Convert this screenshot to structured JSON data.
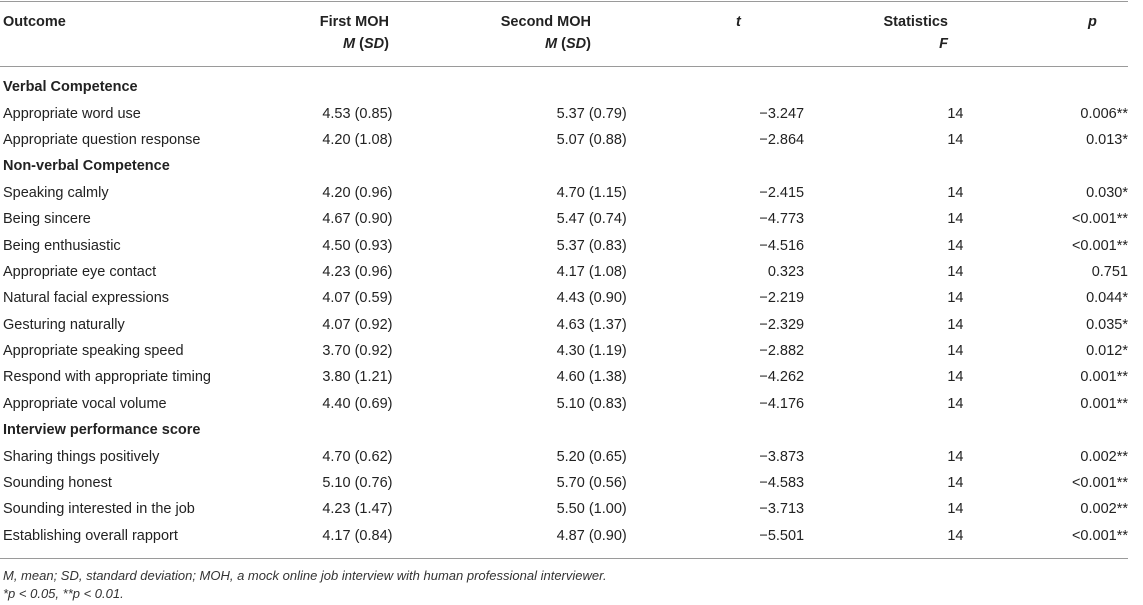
{
  "headers": {
    "outcome": "Outcome",
    "first_moh": "First MOH",
    "first_moh_sub_m": "M",
    "first_moh_sub_sd": "SD",
    "second_moh": "Second MOH",
    "second_moh_sub_m": "M",
    "second_moh_sub_sd": "SD",
    "t": "t",
    "statistics": "Statistics",
    "statistics_sub": "F",
    "p": "p"
  },
  "rows": [
    {
      "type": "section",
      "label": "Verbal Competence"
    },
    {
      "type": "data",
      "label": "Appropriate word use",
      "first": "4.53 (0.85)",
      "second": "5.37 (0.79)",
      "t": "−3.247",
      "f": "14",
      "p": "0.006**"
    },
    {
      "type": "data",
      "label": "Appropriate question response",
      "first": "4.20 (1.08)",
      "second": "5.07 (0.88)",
      "t": "−2.864",
      "f": "14",
      "p": "0.013*"
    },
    {
      "type": "section",
      "label": "Non-verbal Competence"
    },
    {
      "type": "data",
      "label": "Speaking calmly",
      "first": "4.20 (0.96)",
      "second": "4.70 (1.15)",
      "t": "−2.415",
      "f": "14",
      "p": "0.030*"
    },
    {
      "type": "data",
      "label": "Being sincere",
      "first": "4.67 (0.90)",
      "second": "5.47 (0.74)",
      "t": "−4.773",
      "f": "14",
      "p": "<0.001**"
    },
    {
      "type": "data",
      "label": "Being enthusiastic",
      "first": "4.50 (0.93)",
      "second": "5.37 (0.83)",
      "t": "−4.516",
      "f": "14",
      "p": "<0.001**"
    },
    {
      "type": "data",
      "label": "Appropriate eye contact",
      "first": "4.23 (0.96)",
      "second": "4.17 (1.08)",
      "t": "0.323",
      "f": "14",
      "p": "0.751"
    },
    {
      "type": "data",
      "label": "Natural facial expressions",
      "first": "4.07 (0.59)",
      "second": "4.43 (0.90)",
      "t": "−2.219",
      "f": "14",
      "p": "0.044*"
    },
    {
      "type": "data",
      "label": "Gesturing naturally",
      "first": "4.07 (0.92)",
      "second": "4.63 (1.37)",
      "t": "−2.329",
      "f": "14",
      "p": "0.035*"
    },
    {
      "type": "data",
      "label": "Appropriate speaking speed",
      "first": "3.70 (0.92)",
      "second": "4.30 (1.19)",
      "t": "−2.882",
      "f": "14",
      "p": "0.012*"
    },
    {
      "type": "data",
      "label": "Respond with appropriate timing",
      "first": "3.80 (1.21)",
      "second": "4.60 (1.38)",
      "t": "−4.262",
      "f": "14",
      "p": "0.001**"
    },
    {
      "type": "data",
      "label": "Appropriate vocal volume",
      "first": "4.40 (0.69)",
      "second": "5.10 (0.83)",
      "t": "−4.176",
      "f": "14",
      "p": "0.001**"
    },
    {
      "type": "section",
      "label": "Interview performance score"
    },
    {
      "type": "data",
      "label": "Sharing things positively",
      "first": "4.70 (0.62)",
      "second": "5.20 (0.65)",
      "t": "−3.873",
      "f": "14",
      "p": "0.002**"
    },
    {
      "type": "data",
      "label": "Sounding honest",
      "first": "5.10 (0.76)",
      "second": "5.70 (0.56)",
      "t": "−4.583",
      "f": "14",
      "p": "<0.001**"
    },
    {
      "type": "data",
      "label": "Sounding interested in the job",
      "first": "4.23 (1.47)",
      "second": "5.50 (1.00)",
      "t": "−3.713",
      "f": "14",
      "p": "0.002**"
    },
    {
      "type": "data",
      "label": "Establishing overall rapport",
      "first": "4.17 (0.84)",
      "second": "4.87 (0.90)",
      "t": "−5.501",
      "f": "14",
      "p": "<0.001**"
    }
  ],
  "footnotes": {
    "abbreviations": "M, mean; SD, standard deviation; MOH, a mock online job interview with human professional interviewer.",
    "significance": "*p < 0.05, **p < 0.01."
  }
}
